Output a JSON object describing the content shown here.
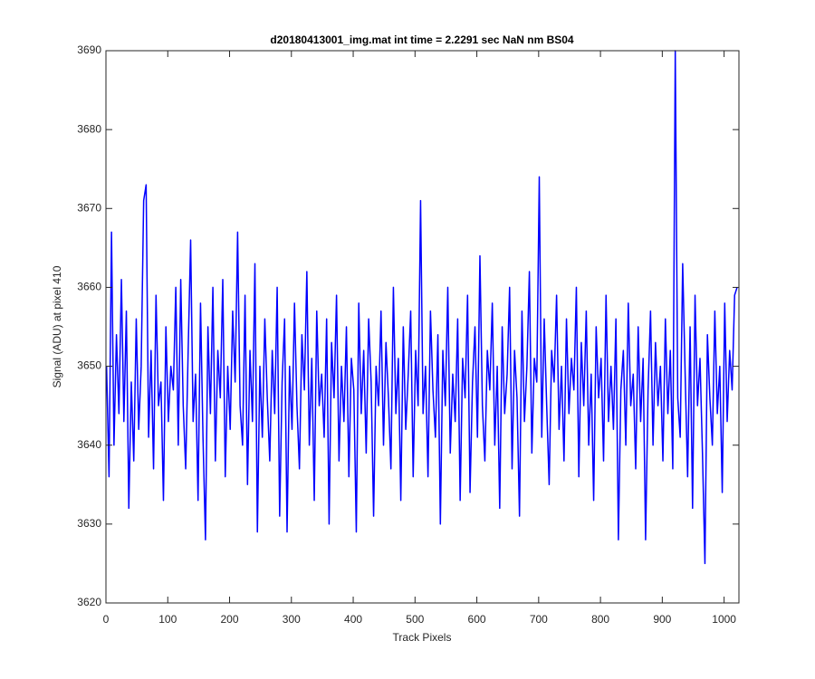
{
  "chart_data": {
    "type": "line",
    "title": "d20180413001_img.mat int time = 2.2291 sec  NaN nm BS04",
    "x_label": "Track Pixels",
    "y_label": "Signal (ADU) at pixel 410",
    "color": "#0000ff",
    "xlim": [
      0,
      1024
    ],
    "ylim": [
      3620,
      3690
    ],
    "xticks": [
      0,
      100,
      200,
      300,
      400,
      500,
      600,
      700,
      800,
      900,
      1000
    ],
    "yticks": [
      3620,
      3630,
      3640,
      3650,
      3660,
      3670,
      3680,
      3690
    ],
    "grid": false,
    "x": [
      1,
      5,
      9,
      13,
      17,
      21,
      25,
      29,
      33,
      37,
      41,
      45,
      49,
      53,
      57,
      61,
      65,
      69,
      73,
      77,
      81,
      85,
      89,
      93,
      97,
      101,
      105,
      109,
      113,
      117,
      121,
      125,
      129,
      133,
      137,
      141,
      145,
      149,
      153,
      157,
      161,
      165,
      169,
      173,
      177,
      181,
      185,
      189,
      193,
      197,
      201,
      205,
      209,
      213,
      217,
      221,
      225,
      229,
      233,
      237,
      241,
      245,
      249,
      253,
      257,
      261,
      265,
      269,
      273,
      277,
      281,
      285,
      289,
      293,
      297,
      301,
      305,
      309,
      313,
      317,
      321,
      325,
      329,
      333,
      337,
      341,
      345,
      349,
      353,
      357,
      361,
      365,
      369,
      373,
      377,
      381,
      385,
      389,
      393,
      397,
      401,
      405,
      409,
      413,
      417,
      421,
      425,
      429,
      433,
      437,
      441,
      445,
      449,
      453,
      457,
      461,
      465,
      469,
      473,
      477,
      481,
      485,
      489,
      493,
      497,
      501,
      505,
      509,
      513,
      517,
      521,
      525,
      529,
      533,
      537,
      541,
      545,
      549,
      553,
      557,
      561,
      565,
      569,
      573,
      577,
      581,
      585,
      589,
      593,
      597,
      601,
      605,
      609,
      613,
      617,
      621,
      625,
      629,
      633,
      637,
      641,
      645,
      649,
      653,
      657,
      661,
      665,
      669,
      673,
      677,
      681,
      685,
      689,
      693,
      697,
      701,
      705,
      709,
      713,
      717,
      721,
      725,
      729,
      733,
      737,
      741,
      745,
      749,
      753,
      757,
      761,
      765,
      769,
      773,
      777,
      781,
      785,
      789,
      793,
      797,
      801,
      805,
      809,
      813,
      817,
      821,
      825,
      829,
      833,
      837,
      841,
      845,
      849,
      853,
      857,
      861,
      865,
      869,
      873,
      877,
      881,
      885,
      889,
      893,
      897,
      901,
      905,
      909,
      913,
      917,
      921,
      925,
      929,
      933,
      937,
      941,
      945,
      949,
      953,
      957,
      961,
      965,
      969,
      973,
      977,
      981,
      985,
      989,
      993,
      997,
      1001,
      1005,
      1009,
      1013,
      1017,
      1021
    ],
    "values": [
      3650,
      3636,
      3667,
      3640,
      3654,
      3644,
      3661,
      3643,
      3657,
      3632,
      3648,
      3638,
      3656,
      3642,
      3650,
      3671,
      3673,
      3641,
      3652,
      3637,
      3659,
      3645,
      3648,
      3633,
      3655,
      3643,
      3650,
      3647,
      3660,
      3640,
      3661,
      3645,
      3637,
      3652,
      3666,
      3643,
      3649,
      3633,
      3658,
      3641,
      3628,
      3655,
      3644,
      3660,
      3638,
      3652,
      3646,
      3661,
      3636,
      3650,
      3642,
      3657,
      3648,
      3667,
      3645,
      3640,
      3659,
      3635,
      3652,
      3643,
      3663,
      3629,
      3650,
      3641,
      3656,
      3646,
      3638,
      3652,
      3644,
      3660,
      3631,
      3648,
      3656,
      3629,
      3650,
      3642,
      3658,
      3645,
      3637,
      3654,
      3647,
      3662,
      3640,
      3651,
      3633,
      3657,
      3645,
      3649,
      3641,
      3656,
      3630,
      3653,
      3646,
      3659,
      3638,
      3650,
      3643,
      3655,
      3636,
      3651,
      3647,
      3629,
      3658,
      3644,
      3652,
      3639,
      3656,
      3648,
      3631,
      3650,
      3645,
      3657,
      3640,
      3653,
      3646,
      3637,
      3660,
      3644,
      3651,
      3633,
      3655,
      3642,
      3649,
      3657,
      3636,
      3652,
      3645,
      3671,
      3644,
      3650,
      3636,
      3657,
      3647,
      3641,
      3654,
      3630,
      3652,
      3645,
      3660,
      3639,
      3649,
      3643,
      3656,
      3633,
      3651,
      3646,
      3659,
      3634,
      3648,
      3655,
      3641,
      3664,
      3645,
      3638,
      3652,
      3647,
      3658,
      3640,
      3650,
      3632,
      3655,
      3644,
      3649,
      3660,
      3637,
      3652,
      3646,
      3631,
      3657,
      3643,
      3650,
      3662,
      3639,
      3651,
      3648,
      3674,
      3641,
      3656,
      3645,
      3635,
      3652,
      3648,
      3659,
      3642,
      3650,
      3638,
      3656,
      3644,
      3651,
      3647,
      3660,
      3636,
      3653,
      3645,
      3657,
      3640,
      3649,
      3633,
      3655,
      3646,
      3651,
      3638,
      3659,
      3643,
      3650,
      3642,
      3656,
      3628,
      3647,
      3652,
      3640,
      3658,
      3645,
      3649,
      3637,
      3655,
      3643,
      3651,
      3628,
      3647,
      3657,
      3640,
      3653,
      3645,
      3650,
      3638,
      3656,
      3644,
      3652,
      3637,
      3690,
      3646,
      3641,
      3663,
      3649,
      3636,
      3655,
      3632,
      3659,
      3645,
      3651,
      3639,
      3625,
      3654,
      3646,
      3640,
      3657,
      3644,
      3650,
      3634,
      3658,
      3643,
      3652,
      3647,
      3659,
      3660
    ]
  }
}
